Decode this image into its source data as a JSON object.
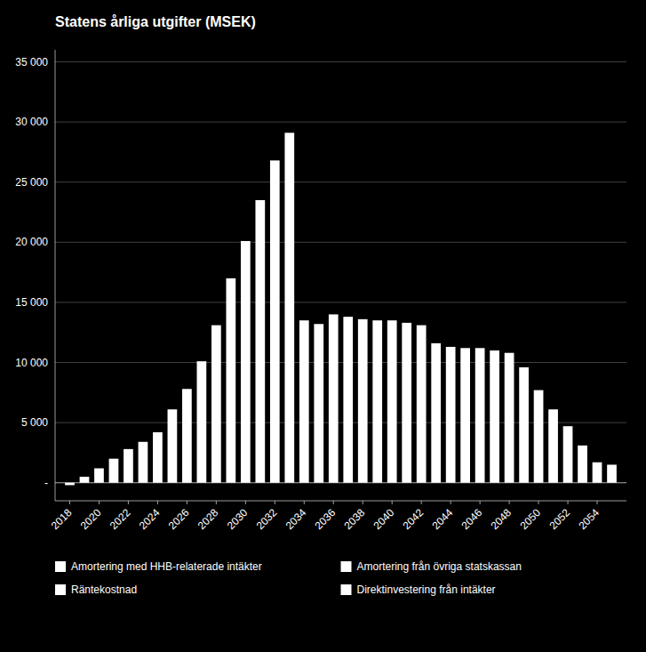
{
  "chart_data": {
    "type": "bar",
    "title": "Statens årliga utgifter (MSEK)",
    "x": [
      2018,
      2019,
      2020,
      2021,
      2022,
      2023,
      2024,
      2025,
      2026,
      2027,
      2028,
      2029,
      2030,
      2031,
      2032,
      2033,
      2034,
      2035,
      2036,
      2037,
      2038,
      2039,
      2040,
      2041,
      2042,
      2043,
      2044,
      2045,
      2046,
      2047,
      2048,
      2049,
      2050,
      2051,
      2052,
      2053,
      2054,
      2055
    ],
    "values": [
      -200,
      500,
      1200,
      2000,
      2800,
      3400,
      4200,
      6100,
      7800,
      10100,
      13100,
      17000,
      20100,
      23500,
      26800,
      29100,
      13500,
      13200,
      14000,
      13800,
      13600,
      13500,
      13500,
      13300,
      13100,
      11600,
      11300,
      11200,
      11200,
      11000,
      10800,
      9600,
      7700,
      6100,
      4700,
      3100,
      1700,
      1500
    ],
    "color": "#ffffff",
    "xlim": [
      2017,
      2056
    ],
    "xticks": [
      2018,
      2020,
      2022,
      2024,
      2026,
      2028,
      2030,
      2032,
      2034,
      2036,
      2038,
      2040,
      2042,
      2044,
      2046,
      2048,
      2050,
      2052,
      2054
    ],
    "ylim": [
      -1500,
      36000
    ],
    "yticks": [
      {
        "value": 0,
        "label": "-"
      },
      {
        "value": 5000,
        "label": "5 000"
      },
      {
        "value": 10000,
        "label": "10 000"
      },
      {
        "value": 15000,
        "label": "15 000"
      },
      {
        "value": 20000,
        "label": "20 000"
      },
      {
        "value": 25000,
        "label": "25 000"
      },
      {
        "value": 30000,
        "label": "30 000"
      },
      {
        "value": 35000,
        "label": "35 000"
      }
    ],
    "grid": true,
    "legend": "bottom",
    "legend_entries": [
      {
        "name": "Amortering med HHB-relaterade intäkter",
        "color": "#ffffff"
      },
      {
        "name": "Amortering från övriga statskassan",
        "color": "#ffffff"
      },
      {
        "name": "Räntekostnad",
        "color": "#ffffff"
      },
      {
        "name": "Direktinvestering från intäkter",
        "color": "#ffffff"
      }
    ]
  }
}
